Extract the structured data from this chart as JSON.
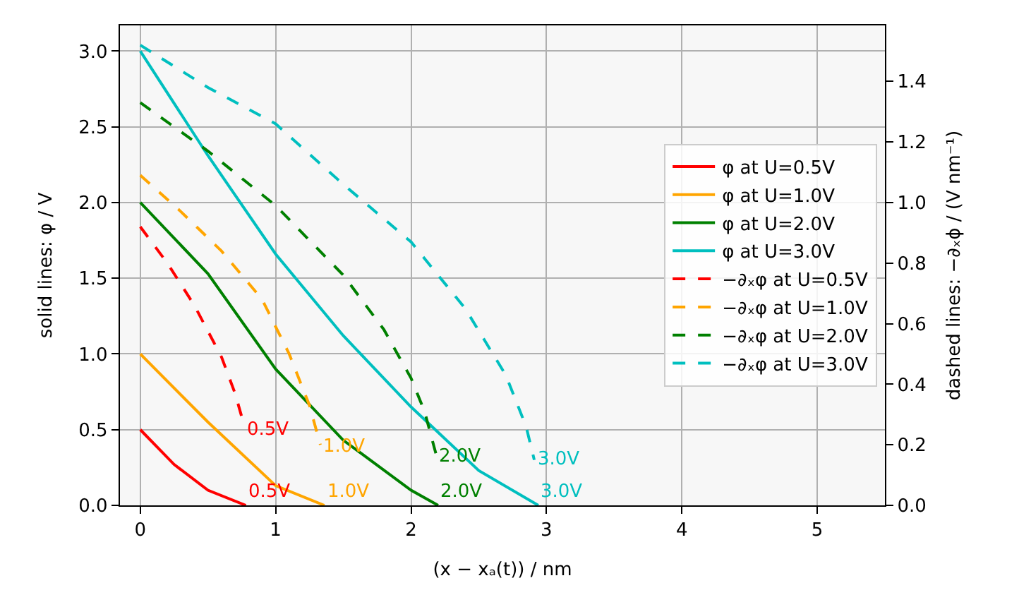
{
  "chart_data": {
    "type": "line",
    "xlabel": "(x − xₐ(t)) / nm",
    "ylabel": "solid lines: φ / V",
    "y2label": "dashed lines: −∂ₓϕ / (V nm⁻¹)",
    "xlim": [
      -0.15,
      5.5
    ],
    "xticks": [
      0,
      1,
      2,
      3,
      4,
      5
    ],
    "ylim": [
      0,
      3.17
    ],
    "yticks": [
      {
        "value": 0,
        "label": "0.0"
      },
      {
        "value": 0.5,
        "label": "0.5"
      },
      {
        "value": 1,
        "label": "1.0"
      },
      {
        "value": 1.5,
        "label": "1.5"
      },
      {
        "value": 2,
        "label": "2.0"
      },
      {
        "value": 2.5,
        "label": "2.5"
      },
      {
        "value": 3,
        "label": "3.0"
      }
    ],
    "y2lim": [
      0,
      1.585
    ],
    "y2ticks": [
      {
        "value": 0,
        "label": "0.0"
      },
      {
        "value": 0.2,
        "label": "0.2"
      },
      {
        "value": 0.4,
        "label": "0.4"
      },
      {
        "value": 0.6,
        "label": "0.6"
      },
      {
        "value": 0.8,
        "label": "0.8"
      },
      {
        "value": 1.0,
        "label": "1.0"
      },
      {
        "value": 1.2,
        "label": "1.2"
      },
      {
        "value": 1.4,
        "label": "1.4"
      }
    ],
    "grid": true,
    "legend": "right",
    "marker": "none",
    "series": [
      {
        "name": "φ at U=0.5V",
        "color": "#ff0000",
        "line_style": "solid",
        "x": [
          0,
          0.25,
          0.5,
          0.78
        ],
        "values": [
          0.5,
          0.27,
          0.1,
          0
        ]
      },
      {
        "name": "φ at U=1.0V",
        "color": "#ffa500",
        "line_style": "solid",
        "x": [
          0,
          0.5,
          1.0,
          1.36
        ],
        "values": [
          1.0,
          0.55,
          0.13,
          0
        ]
      },
      {
        "name": "φ at U=2.0V",
        "color": "#008000",
        "line_style": "solid",
        "x": [
          0,
          0.5,
          1.0,
          1.5,
          2.0,
          2.2
        ],
        "values": [
          2.0,
          1.53,
          0.9,
          0.43,
          0.1,
          0
        ]
      },
      {
        "name": "φ at U=3.0V",
        "color": "#00bfbf",
        "line_style": "solid",
        "x": [
          0,
          0.5,
          1.0,
          1.5,
          2.0,
          2.5,
          2.94
        ],
        "values": [
          3.0,
          2.31,
          1.66,
          1.12,
          0.65,
          0.23,
          0
        ]
      },
      {
        "name": "−∂ₓφ at U=0.5V",
        "color": "#ff0000",
        "line_style": "dashed",
        "axis": "y2",
        "x": [
          0,
          0.2,
          0.4,
          0.6,
          0.7,
          0.77
        ],
        "values": [
          0.92,
          0.8,
          0.66,
          0.49,
          0.37,
          0.26
        ]
      },
      {
        "name": "−∂ₓφ at U=1.0V",
        "color": "#ffa500",
        "line_style": "dashed",
        "axis": "y2",
        "x": [
          0,
          0.3,
          0.6,
          0.9,
          1.1,
          1.25,
          1.33
        ],
        "values": [
          1.09,
          0.97,
          0.84,
          0.68,
          0.5,
          0.33,
          0.2
        ]
      },
      {
        "name": "−∂ₓφ at U=2.0V",
        "color": "#008000",
        "line_style": "dashed",
        "axis": "y2",
        "x": [
          0,
          0.5,
          1.0,
          1.5,
          1.8,
          2.0,
          2.1,
          2.19
        ],
        "values": [
          1.33,
          1.17,
          0.99,
          0.76,
          0.58,
          0.42,
          0.31,
          0.16
        ]
      },
      {
        "name": "−∂ₓφ at U=3.0V",
        "color": "#00bfbf",
        "line_style": "dashed",
        "axis": "y2",
        "x": [
          0,
          0.5,
          1.0,
          1.5,
          2.0,
          2.4,
          2.7,
          2.85,
          2.91
        ],
        "values": [
          1.52,
          1.38,
          1.26,
          1.06,
          0.87,
          0.65,
          0.43,
          0.26,
          0.15
        ]
      }
    ],
    "annotations": [
      {
        "text": "0.5V",
        "x": 0.78,
        "y": 0
      },
      {
        "text": "1.0V",
        "x": 1.36,
        "y": 0
      },
      {
        "text": "2.0V",
        "x": 2.2,
        "y": 0
      },
      {
        "text": "3.0V",
        "x": 2.94,
        "y": 0
      },
      {
        "text": "0.5V",
        "x": 0.77,
        "y": 0.5
      },
      {
        "text": "1.0V",
        "x": 1.33,
        "y": 0.39
      },
      {
        "text": "2.0V",
        "x": 2.19,
        "y": 0.32
      },
      {
        "text": "3.0V",
        "x": 2.91,
        "y": 0.3
      }
    ]
  }
}
